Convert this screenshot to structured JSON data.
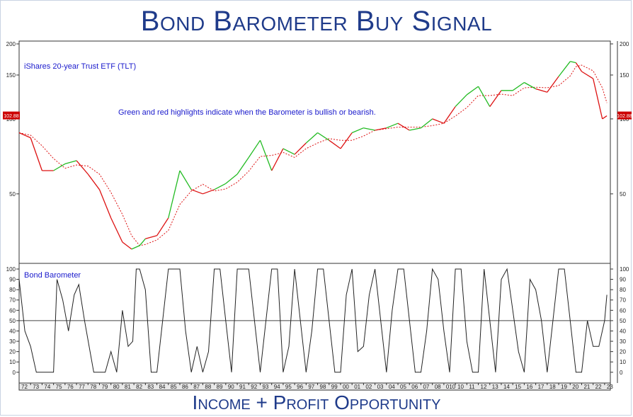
{
  "header": {
    "title": "Bond Barometer Buy Signal"
  },
  "footer": {
    "text": "Income + Profit Opportunity"
  },
  "colors": {
    "brand": "#1f3b8a",
    "annotation": "#1a1acc",
    "bullish": "#22bb22",
    "bearish": "#dd1111",
    "neutral": "#222222",
    "tag": "#cc0000"
  },
  "chart_data": [
    {
      "type": "line",
      "label": "iShares 20-year Trust ETF (TLT)",
      "annotation": "Green and red highlights indicate when the  Barometer is bullish or bearish.",
      "scale": "log",
      "ylim": [
        27,
        200
      ],
      "y_ticks": [
        50,
        100,
        150,
        200
      ],
      "y_tick_labels": [
        "50",
        "100",
        "150",
        "200"
      ],
      "last_value_tag": "102.88",
      "xlim": [
        1972,
        2023.5
      ],
      "x": [
        1972,
        1973,
        1974,
        1975,
        1976,
        1977,
        1978,
        1979,
        1980,
        1981,
        1981.8,
        1982.5,
        1983,
        1984,
        1985,
        1986,
        1987,
        1988,
        1989,
        1990,
        1991,
        1992,
        1993,
        1994,
        1995,
        1996,
        1997,
        1998,
        1999,
        2000,
        2001,
        2002,
        2003,
        2004,
        2005,
        2006,
        2007,
        2008,
        2009,
        2010,
        2011,
        2012,
        2013,
        2014,
        2015,
        2016,
        2017,
        2018,
        2019,
        2020,
        2020.5,
        2021,
        2022,
        2022.8,
        2023.2
      ],
      "values": [
        88,
        84,
        62,
        62,
        66,
        68,
        60,
        52,
        40,
        32,
        30,
        31,
        33,
        34,
        40,
        62,
        52,
        50,
        52,
        55,
        60,
        70,
        82,
        62,
        76,
        72,
        80,
        88,
        82,
        76,
        88,
        92,
        90,
        92,
        96,
        90,
        92,
        100,
        96,
        112,
        125,
        135,
        112,
        130,
        130,
        140,
        132,
        128,
        148,
        170,
        168,
        155,
        145,
        100,
        102.88
      ],
      "regime": [
        "R",
        "R",
        "R",
        "G",
        "G",
        "R",
        "R",
        "R",
        "R",
        "R",
        "G",
        "G",
        "R",
        "R",
        "G",
        "G",
        "R",
        "R",
        "G",
        "G",
        "G",
        "G",
        "G",
        "R",
        "G",
        "R",
        "G",
        "G",
        "R",
        "R",
        "G",
        "G",
        "R",
        "G",
        "R",
        "G",
        "G",
        "R",
        "R",
        "G",
        "G",
        "G",
        "R",
        "G",
        "G",
        "G",
        "R",
        "R",
        "G",
        "G",
        "R",
        "R",
        "R",
        "R",
        "R"
      ],
      "series": [
        {
          "name": "TLT"
        },
        {
          "name": "moving average",
          "style": "dotted red"
        }
      ]
    },
    {
      "type": "line",
      "label": "Bond Barometer",
      "ylim": [
        -7,
        100
      ],
      "y_ticks": [
        0,
        10,
        20,
        30,
        40,
        50,
        60,
        70,
        80,
        90,
        100
      ],
      "y_tick_labels": [
        "0",
        "10",
        "20",
        "30",
        "40",
        "50",
        "60",
        "70",
        "80",
        "90",
        "100"
      ],
      "reference_line": 50,
      "x_tick_labels": [
        "72",
        "73",
        "74",
        "75",
        "76",
        "77",
        "78",
        "79",
        "80",
        "81",
        "82",
        "83",
        "84",
        "85",
        "86",
        "87",
        "88",
        "89",
        "90",
        "91",
        "92",
        "93",
        "94",
        "95",
        "96",
        "97",
        "98",
        "99",
        "00",
        "01",
        "02",
        "03",
        "04",
        "05",
        "06",
        "07",
        "08",
        "010",
        "10",
        "11",
        "12",
        "13",
        "14",
        "15",
        "16",
        "17",
        "18",
        "19",
        "20",
        "21",
        "22",
        "23"
      ],
      "x": [
        1972,
        1972.5,
        1973,
        1973.5,
        1974,
        1975,
        1975.3,
        1975.8,
        1976.3,
        1976.8,
        1977.2,
        1977.7,
        1978.5,
        1979.5,
        1980,
        1980.5,
        1981,
        1981.5,
        1981.9,
        1982.2,
        1982.5,
        1983,
        1983.5,
        1984,
        1984.5,
        1985,
        1985.5,
        1986,
        1986.5,
        1987,
        1987.5,
        1988,
        1988.5,
        1989,
        1989.5,
        1990,
        1990.5,
        1991,
        1991.5,
        1992,
        1992.5,
        1993,
        1993.5,
        1994,
        1994.5,
        1995,
        1995.5,
        1996,
        1996.5,
        1997,
        1997.5,
        1998,
        1998.5,
        1999,
        1999.5,
        2000,
        2000.5,
        2001,
        2001.5,
        2002,
        2002.5,
        2003,
        2003.5,
        2004,
        2004.5,
        2005,
        2005.5,
        2006,
        2006.5,
        2007,
        2007.5,
        2008,
        2008.5,
        2009,
        2009.5,
        2010,
        2010.5,
        2011,
        2011.5,
        2012,
        2012.5,
        2013,
        2013.5,
        2014,
        2014.5,
        2015,
        2015.5,
        2016,
        2016.5,
        2017,
        2017.5,
        2018,
        2018.5,
        2019,
        2019.5,
        2020,
        2020.5,
        2021,
        2021.5,
        2022,
        2022.5,
        2023,
        2023.2
      ],
      "values": [
        90,
        40,
        25,
        0,
        0,
        0,
        90,
        70,
        40,
        75,
        85,
        50,
        0,
        0,
        20,
        0,
        60,
        25,
        30,
        100,
        100,
        80,
        0,
        0,
        50,
        100,
        100,
        100,
        40,
        0,
        25,
        0,
        20,
        100,
        100,
        50,
        0,
        100,
        100,
        100,
        50,
        0,
        50,
        100,
        100,
        0,
        25,
        100,
        50,
        0,
        40,
        100,
        100,
        50,
        0,
        0,
        75,
        100,
        20,
        25,
        75,
        100,
        50,
        0,
        60,
        100,
        100,
        50,
        0,
        0,
        40,
        100,
        90,
        40,
        0,
        100,
        100,
        30,
        0,
        0,
        100,
        50,
        0,
        90,
        100,
        60,
        20,
        0,
        90,
        80,
        50,
        0,
        50,
        100,
        100,
        50,
        0,
        0,
        50,
        25,
        25,
        50,
        75
      ]
    }
  ]
}
